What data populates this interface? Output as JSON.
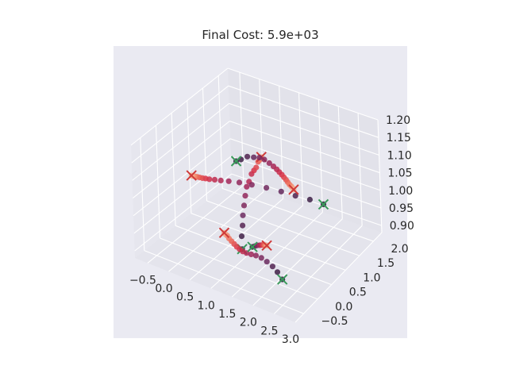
{
  "chart_data": {
    "type": "scatter",
    "title": "Final Cost: 5.9e+03",
    "projection": "3d",
    "grid": true,
    "xlim": [
      -0.8,
      3.0
    ],
    "ylim": [
      -0.8,
      2.3
    ],
    "zlim": [
      0.88,
      1.2
    ],
    "x_ticks": [
      "−0.5",
      "0.0",
      "0.5",
      "1.0",
      "1.5",
      "2.0",
      "2.5",
      "3.0"
    ],
    "y_ticks": [
      "−0.5",
      "0.0",
      "0.5",
      "1.0",
      "1.5",
      "2.0"
    ],
    "z_ticks": [
      "0.90",
      "0.95",
      "1.00",
      "1.05",
      "1.10",
      "1.15",
      "1.20"
    ],
    "x_tick_values": [
      -0.5,
      0.0,
      0.5,
      1.0,
      1.5,
      2.0,
      2.5,
      3.0
    ],
    "y_tick_values": [
      -0.5,
      0.0,
      0.5,
      1.0,
      1.5,
      2.0
    ],
    "z_tick_values": [
      0.9,
      0.95,
      1.0,
      1.05,
      1.1,
      1.15,
      1.2
    ],
    "colors": {
      "pane": "#eaeaf2",
      "grid": "#ffffff",
      "start_marker": "#3a9a5b",
      "goal_marker": "#cf3a3a",
      "path_start": "#2a1a3a",
      "path_end": "#f5b08c"
    },
    "trajectories": [
      {
        "start": [
          1.2,
          0.0,
          0.94
        ],
        "goal": [
          0.3,
          1.9,
          1.02
        ],
        "points": [
          [
            1.2,
            0.0,
            0.94
          ],
          [
            1.02,
            0.24,
            0.95
          ],
          [
            0.9,
            0.44,
            0.96
          ],
          [
            0.78,
            0.62,
            0.97
          ],
          [
            0.68,
            0.8,
            0.98
          ],
          [
            0.58,
            0.98,
            0.99
          ],
          [
            0.5,
            1.14,
            1.0
          ],
          [
            0.44,
            1.3,
            1.0
          ],
          [
            0.4,
            1.44,
            1.01
          ],
          [
            0.37,
            1.56,
            1.01
          ],
          [
            0.35,
            1.66,
            1.01
          ],
          [
            0.34,
            1.74,
            1.02
          ],
          [
            0.33,
            1.8,
            1.02
          ],
          [
            0.32,
            1.84,
            1.02
          ],
          [
            0.31,
            1.88,
            1.02
          ],
          [
            0.3,
            1.9,
            1.02
          ]
        ]
      },
      {
        "start": [
          2.1,
          1.55,
          0.985
        ],
        "goal": [
          -0.6,
          0.8,
          1.01
        ],
        "points": [
          [
            2.1,
            1.55,
            0.985
          ],
          [
            1.8,
            1.5,
            0.99
          ],
          [
            1.5,
            1.42,
            0.995
          ],
          [
            1.2,
            1.35,
            1.0
          ],
          [
            0.9,
            1.26,
            1.005
          ],
          [
            0.6,
            1.18,
            1.007
          ],
          [
            0.35,
            1.1,
            1.009
          ],
          [
            0.15,
            1.02,
            1.01
          ],
          [
            0.0,
            0.96,
            1.01
          ],
          [
            -0.12,
            0.92,
            1.01
          ],
          [
            -0.22,
            0.88,
            1.01
          ],
          [
            -0.3,
            0.86,
            1.01
          ],
          [
            -0.36,
            0.84,
            1.01
          ],
          [
            -0.42,
            0.83,
            1.01
          ],
          [
            -0.47,
            0.82,
            1.01
          ],
          [
            -0.51,
            0.81,
            1.01
          ],
          [
            -0.54,
            0.81,
            1.01
          ],
          [
            -0.57,
            0.8,
            1.01
          ],
          [
            -0.6,
            0.8,
            1.01
          ]
        ]
      },
      {
        "start": [
          0.6,
          0.7,
          1.11
        ],
        "goal": [
          2.0,
          0.7,
          1.09
        ],
        "points": [
          [
            0.6,
            0.7,
            1.11
          ],
          [
            0.72,
            0.7,
            1.12
          ],
          [
            0.88,
            0.7,
            1.135
          ],
          [
            1.04,
            0.7,
            1.14
          ],
          [
            1.18,
            0.7,
            1.145
          ],
          [
            1.3,
            0.7,
            1.145
          ],
          [
            1.42,
            0.7,
            1.14
          ],
          [
            1.52,
            0.7,
            1.135
          ],
          [
            1.6,
            0.7,
            1.13
          ],
          [
            1.66,
            0.7,
            1.125
          ],
          [
            1.72,
            0.7,
            1.12
          ],
          [
            1.77,
            0.7,
            1.115
          ],
          [
            1.82,
            0.7,
            1.11
          ],
          [
            1.86,
            0.7,
            1.105
          ],
          [
            1.9,
            0.7,
            1.1
          ],
          [
            1.94,
            0.7,
            1.097
          ],
          [
            1.97,
            0.7,
            1.094
          ],
          [
            2.0,
            0.7,
            1.09
          ]
        ]
      },
      {
        "start": [
          2.3,
          -0.2,
          0.92
        ],
        "goal": [
          1.0,
          -0.3,
          1.0
        ],
        "points": [
          [
            2.3,
            -0.2,
            0.92
          ],
          [
            2.15,
            -0.15,
            0.93
          ],
          [
            2.0,
            -0.1,
            0.935
          ],
          [
            1.85,
            -0.08,
            0.94
          ],
          [
            1.72,
            -0.08,
            0.945
          ],
          [
            1.62,
            -0.12,
            0.95
          ],
          [
            1.55,
            -0.18,
            0.955
          ],
          [
            1.48,
            -0.24,
            0.96
          ],
          [
            1.42,
            -0.28,
            0.965
          ],
          [
            1.36,
            -0.3,
            0.97
          ],
          [
            1.3,
            -0.31,
            0.975
          ],
          [
            1.24,
            -0.31,
            0.98
          ],
          [
            1.18,
            -0.31,
            0.985
          ],
          [
            1.12,
            -0.31,
            0.99
          ],
          [
            1.07,
            -0.3,
            0.995
          ],
          [
            1.03,
            -0.3,
            0.997
          ],
          [
            1.0,
            -0.3,
            1.0
          ]
        ]
      },
      {
        "start": [
          1.6,
          -0.2,
          0.98
        ],
        "goal": [
          1.95,
          -0.2,
          1.0
        ],
        "points": [
          [
            1.6,
            -0.2,
            0.98
          ],
          [
            1.66,
            -0.2,
            0.985
          ],
          [
            1.72,
            -0.2,
            0.99
          ],
          [
            1.78,
            -0.2,
            0.993
          ],
          [
            1.83,
            -0.2,
            0.996
          ],
          [
            1.87,
            -0.2,
            0.998
          ],
          [
            1.91,
            -0.2,
            0.999
          ],
          [
            1.95,
            -0.2,
            1.0
          ]
        ]
      }
    ]
  }
}
